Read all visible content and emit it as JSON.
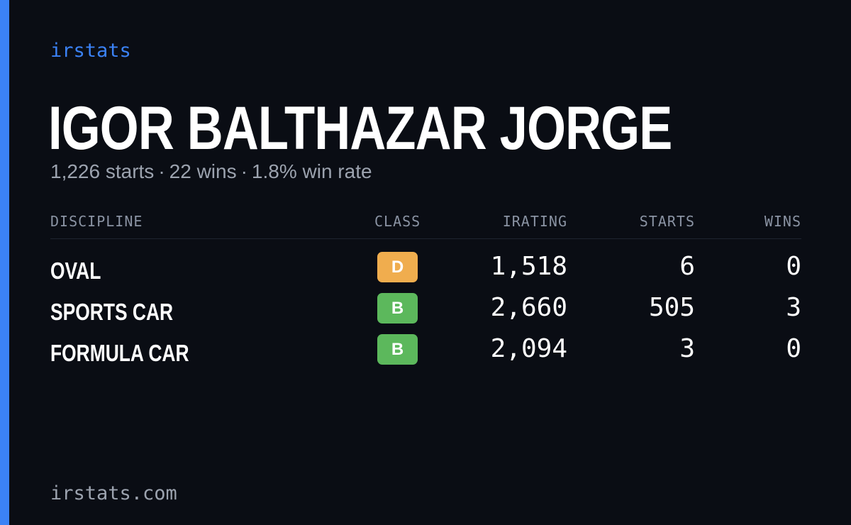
{
  "brand": "irstats",
  "driver": {
    "name": "IGOR BALTHAZAR JORGE",
    "starts_text": "1,226 starts",
    "wins_text": "22 wins",
    "win_rate_text": "1.8% win rate",
    "separator": "·"
  },
  "table": {
    "headers": {
      "discipline": "DISCIPLINE",
      "class": "CLASS",
      "irating": "IRATING",
      "starts": "STARTS",
      "wins": "WINS"
    },
    "rows": [
      {
        "discipline": "OVAL",
        "class": "D",
        "class_color": "#f0ad4e",
        "irating": "1,518",
        "starts": "6",
        "wins": "0"
      },
      {
        "discipline": "SPORTS CAR",
        "class": "B",
        "class_color": "#5cb85c",
        "irating": "2,660",
        "starts": "505",
        "wins": "3"
      },
      {
        "discipline": "FORMULA CAR",
        "class": "B",
        "class_color": "#5cb85c",
        "irating": "2,094",
        "starts": "3",
        "wins": "0"
      }
    ]
  },
  "footer": "irstats.com",
  "colors": {
    "accent": "#3b82f6",
    "background": "#0a0d14",
    "muted": "#9ca3af"
  }
}
